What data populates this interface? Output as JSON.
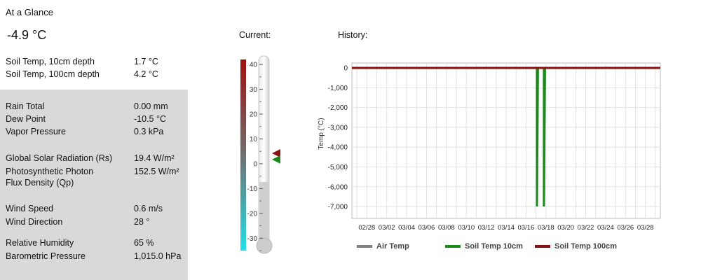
{
  "glance": {
    "title": "At a Glance",
    "current_temp": "-4.9 °C"
  },
  "soil": [
    {
      "label": "Soil Temp, 10cm depth",
      "value": "1.7 °C"
    },
    {
      "label": "Soil Temp, 100cm depth",
      "value": "4.2 °C"
    }
  ],
  "metrics": {
    "group1": [
      {
        "label": "Rain Total",
        "value": "0.00 mm"
      },
      {
        "label": "Dew Point",
        "value": "-10.5 °C"
      },
      {
        "label": "Vapor Pressure",
        "value": "0.3 kPa"
      }
    ],
    "solar": {
      "label": "Global Solar Radiation (Rs)",
      "value": "19.4 W/m²"
    },
    "photon": {
      "label_line1": "Photosynthetic Photon",
      "label_line2": "Flux Density (Qp)",
      "value": "152.5 W/m²"
    },
    "wind": [
      {
        "label": "Wind Speed",
        "value": "0.6 m/s"
      },
      {
        "label": "Wind Direction",
        "value": "28 °"
      }
    ],
    "humidity": [
      {
        "label": "Relative Humidity",
        "value": "65 %"
      },
      {
        "label": "Barometric Pressure",
        "value": "1,015.0 hPa"
      }
    ]
  },
  "current_section": {
    "label": "Current:",
    "gauge_ticks": [
      "40",
      "30",
      "20",
      "10",
      "0",
      "-10",
      "-20",
      "-30"
    ],
    "gauge_range": [
      -35,
      42
    ],
    "marker_soil100": 4.2,
    "marker_soil10": 1.7,
    "colors": {
      "hot": "#a01010",
      "cold": "#22e0e8",
      "marker_red": "#8b1010",
      "marker_green": "#1a8a1a"
    }
  },
  "history_section": {
    "label": "History:"
  },
  "chart_data": {
    "type": "line",
    "ylabel": "Temp (°C)",
    "ylim": [
      -7600,
      250
    ],
    "y_ticks": [
      "0",
      "-1,000",
      "-2,000",
      "-3,000",
      "-4,000",
      "-5,000",
      "-6,000",
      "-7,000"
    ],
    "y_tick_values": [
      0,
      -1000,
      -2000,
      -3000,
      -4000,
      -5000,
      -6000,
      -7000
    ],
    "x_ticks": [
      "02/28",
      "03/02",
      "03/04",
      "03/06",
      "03/08",
      "03/10",
      "03/12",
      "03/14",
      "03/16",
      "03/18",
      "03/20",
      "03/22",
      "03/24",
      "03/26",
      "03/28"
    ],
    "x_range_days": [
      -1.5,
      29.5
    ],
    "x_tick_days": [
      0,
      2,
      4,
      6,
      8,
      10,
      12,
      14,
      16,
      18,
      20,
      22,
      24,
      26,
      28
    ],
    "series": [
      {
        "name": "Air Temp",
        "color": "#808080",
        "points": [
          [
            -1.5,
            0
          ],
          [
            29.5,
            0
          ]
        ]
      },
      {
        "name": "Soil Temp 10cm",
        "color": "#1a8a1a",
        "points": [
          [
            -1.5,
            2
          ],
          [
            17.1,
            2
          ],
          [
            17.1,
            -7000
          ],
          [
            17.2,
            2
          ],
          [
            17.8,
            2
          ],
          [
            17.8,
            -7000
          ],
          [
            17.9,
            2
          ],
          [
            29.5,
            2
          ]
        ]
      },
      {
        "name": "Soil Temp 100cm",
        "color": "#8b1010",
        "points": [
          [
            -1.5,
            4
          ],
          [
            29.5,
            4
          ]
        ]
      }
    ]
  }
}
